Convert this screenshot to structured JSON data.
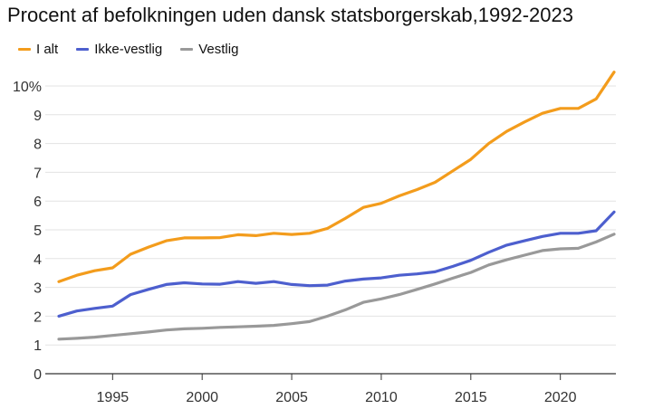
{
  "chart_data": {
    "type": "line",
    "title": "Procent af befolkningen uden dansk statsborgerskab,1992-2023",
    "xlabel": "",
    "ylabel": "",
    "x": [
      1992,
      1993,
      1994,
      1995,
      1996,
      1997,
      1998,
      1999,
      2000,
      2001,
      2002,
      2003,
      2004,
      2005,
      2006,
      2007,
      2008,
      2009,
      2010,
      2011,
      2012,
      2013,
      2014,
      2015,
      2016,
      2017,
      2018,
      2019,
      2020,
      2021,
      2022,
      2023
    ],
    "xlim": [
      1992,
      2023
    ],
    "ylim": [
      0,
      10
    ],
    "x_ticks": [
      1995,
      2000,
      2005,
      2010,
      2015,
      2020
    ],
    "y_ticks": [
      0,
      1,
      2,
      3,
      4,
      5,
      6,
      7,
      8,
      9,
      10
    ],
    "y_tick_labels": [
      "0",
      "1",
      "2",
      "3",
      "4",
      "5",
      "6",
      "7",
      "8",
      "9",
      "10%"
    ],
    "grid": "horizontal",
    "legend_position": "top-left",
    "series": [
      {
        "name": "I alt",
        "color": "#f39c1c",
        "values": [
          3.2,
          3.42,
          3.58,
          3.68,
          4.15,
          4.4,
          4.62,
          4.72,
          4.72,
          4.73,
          4.83,
          4.8,
          4.88,
          4.84,
          4.88,
          5.05,
          5.4,
          5.78,
          5.92,
          6.18,
          6.4,
          6.65,
          7.05,
          7.45,
          8.0,
          8.42,
          8.75,
          9.05,
          9.22,
          9.22,
          9.55,
          10.48
        ]
      },
      {
        "name": "Ikke-vestlig",
        "color": "#4d5fce",
        "values": [
          2.0,
          2.18,
          2.27,
          2.35,
          2.75,
          2.93,
          3.1,
          3.16,
          3.12,
          3.11,
          3.2,
          3.14,
          3.2,
          3.1,
          3.06,
          3.08,
          3.22,
          3.29,
          3.33,
          3.42,
          3.47,
          3.54,
          3.73,
          3.94,
          4.22,
          4.47,
          4.62,
          4.77,
          4.88,
          4.88,
          4.97,
          5.62
        ]
      },
      {
        "name": "Vestlig",
        "color": "#999999",
        "values": [
          1.2,
          1.23,
          1.27,
          1.33,
          1.39,
          1.45,
          1.52,
          1.56,
          1.58,
          1.61,
          1.63,
          1.65,
          1.68,
          1.74,
          1.81,
          2.0,
          2.22,
          2.48,
          2.6,
          2.75,
          2.93,
          3.12,
          3.32,
          3.52,
          3.78,
          3.96,
          4.12,
          4.28,
          4.34,
          4.36,
          4.58,
          4.85
        ]
      }
    ]
  }
}
